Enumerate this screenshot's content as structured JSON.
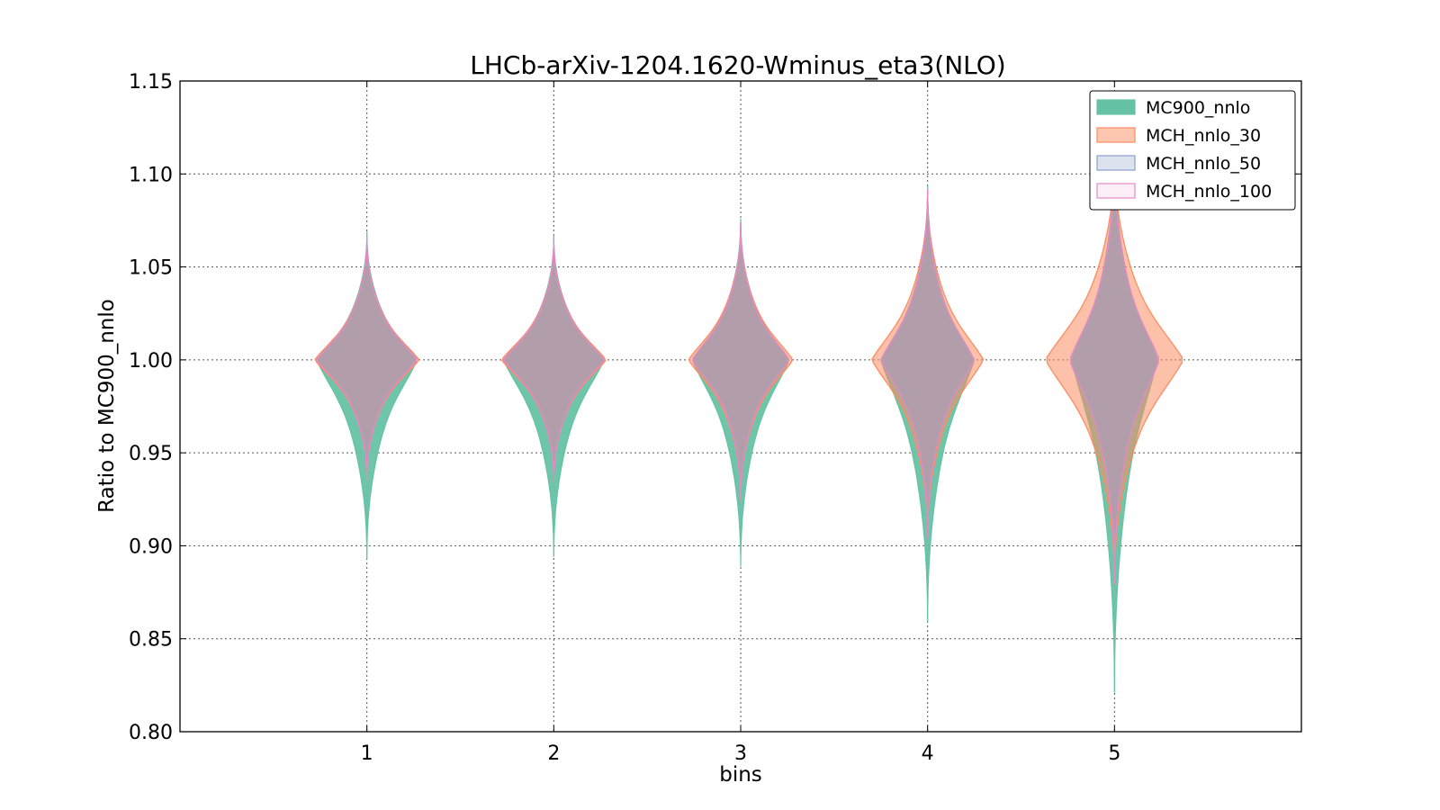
{
  "chart_data": {
    "type": "violin",
    "title": "LHCb-arXiv-1204.1620-Wminus_eta3(NLO)",
    "xlabel": "bins",
    "ylabel": "Ratio to MC900_nnlo",
    "categories": [
      "1",
      "2",
      "3",
      "4",
      "5"
    ],
    "x": [
      1,
      2,
      3,
      4,
      5
    ],
    "xlim": [
      0,
      6
    ],
    "ylim": [
      0.8,
      1.15
    ],
    "yticks": [
      "0.80",
      "0.85",
      "0.90",
      "0.95",
      "1.00",
      "1.05",
      "1.10",
      "1.15"
    ],
    "ytick_values": [
      0.8,
      0.85,
      0.9,
      0.95,
      1.0,
      1.05,
      1.1,
      1.15
    ],
    "grid": true,
    "legend_position": "top-right",
    "series": [
      {
        "name": "MC900_nnlo",
        "fill": "#66c2a5",
        "stroke": "#66c2a5",
        "violins": [
          {
            "x": 1,
            "center": 1.0,
            "min": 0.893,
            "max": 1.069,
            "half_width": 0.27
          },
          {
            "x": 2,
            "center": 1.0,
            "min": 0.894,
            "max": 1.067,
            "half_width": 0.27
          },
          {
            "x": 3,
            "center": 1.0,
            "min": 0.889,
            "max": 1.076,
            "half_width": 0.26
          },
          {
            "x": 4,
            "center": 1.0,
            "min": 0.859,
            "max": 1.094,
            "half_width": 0.25
          },
          {
            "x": 5,
            "center": 1.0,
            "min": 0.821,
            "max": 1.116,
            "half_width": 0.23
          }
        ]
      },
      {
        "name": "MCH_nnlo_30",
        "fill": "#fc8d62",
        "stroke": "#fc8d62",
        "violins": [
          {
            "x": 1,
            "center": 1.0,
            "min": 0.935,
            "max": 1.066,
            "half_width": 0.28
          },
          {
            "x": 2,
            "center": 1.0,
            "min": 0.934,
            "max": 1.065,
            "half_width": 0.28
          },
          {
            "x": 3,
            "center": 1.0,
            "min": 0.924,
            "max": 1.074,
            "half_width": 0.28
          },
          {
            "x": 4,
            "center": 1.0,
            "min": 0.904,
            "max": 1.092,
            "half_width": 0.3
          },
          {
            "x": 5,
            "center": 1.0,
            "min": 0.879,
            "max": 1.112,
            "half_width": 0.37
          }
        ]
      },
      {
        "name": "MCH_nnlo_50",
        "fill": "#8da0cb",
        "stroke": "#8da0cb",
        "violins": [
          {
            "x": 1,
            "center": 1.0,
            "min": 0.935,
            "max": 1.066,
            "half_width": 0.27
          },
          {
            "x": 2,
            "center": 1.0,
            "min": 0.934,
            "max": 1.065,
            "half_width": 0.27
          },
          {
            "x": 3,
            "center": 1.0,
            "min": 0.924,
            "max": 1.074,
            "half_width": 0.26
          },
          {
            "x": 4,
            "center": 1.0,
            "min": 0.904,
            "max": 1.092,
            "half_width": 0.25
          },
          {
            "x": 5,
            "center": 1.0,
            "min": 0.879,
            "max": 1.112,
            "half_width": 0.24
          }
        ]
      },
      {
        "name": "MCH_nnlo_100",
        "fill": "#e78ac3",
        "stroke": "#e78ac3",
        "violins": [
          {
            "x": 1,
            "center": 1.0,
            "min": 0.935,
            "max": 1.066,
            "half_width": 0.27
          },
          {
            "x": 2,
            "center": 1.0,
            "min": 0.934,
            "max": 1.065,
            "half_width": 0.27
          },
          {
            "x": 3,
            "center": 1.0,
            "min": 0.924,
            "max": 1.074,
            "half_width": 0.26
          },
          {
            "x": 4,
            "center": 1.0,
            "min": 0.904,
            "max": 1.092,
            "half_width": 0.25
          },
          {
            "x": 5,
            "center": 1.0,
            "min": 0.879,
            "max": 1.112,
            "half_width": 0.24
          }
        ]
      }
    ]
  }
}
